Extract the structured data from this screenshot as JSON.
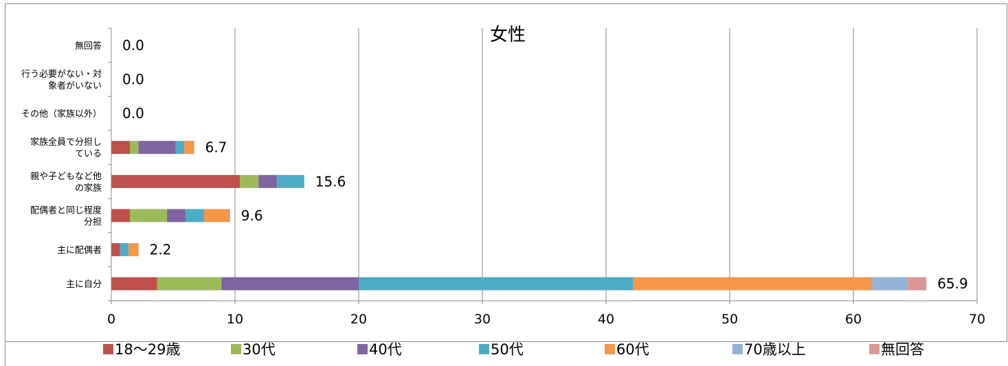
{
  "chart_data": {
    "type": "bar",
    "orientation": "horizontal",
    "stacked": true,
    "title": "女性",
    "xlim": [
      0,
      70
    ],
    "x_ticks": [
      0,
      10,
      20,
      30,
      40,
      50,
      60,
      70
    ],
    "grid": "vertical",
    "legend_position": "bottom",
    "categories": [
      [
        "主に自分"
      ],
      [
        "主に配偶者"
      ],
      [
        "配偶者と同じ程度",
        "分担"
      ],
      [
        "親や子どもなど他",
        "の家族"
      ],
      [
        "家族全員で分担し",
        "ている"
      ],
      [
        "その他（家族以外）"
      ],
      [
        "行う必要がない・対",
        "象者がいない"
      ],
      [
        "無回答"
      ]
    ],
    "totals": [
      "65.9",
      "2.2",
      "9.6",
      "15.6",
      "6.7",
      "0.0",
      "0.0",
      "0.0"
    ],
    "series": [
      {
        "name": "18〜29歳",
        "color": "#C0504D",
        "values": [
          3.7,
          0.7,
          1.5,
          10.4,
          1.5,
          0,
          0,
          0
        ]
      },
      {
        "name": "30代",
        "color": "#9BBB59",
        "values": [
          5.2,
          0.0,
          3.0,
          1.5,
          0.7,
          0,
          0,
          0
        ]
      },
      {
        "name": "40代",
        "color": "#8064A2",
        "values": [
          11.1,
          0.0,
          1.5,
          1.5,
          3.0,
          0,
          0,
          0
        ]
      },
      {
        "name": "50代",
        "color": "#4BACC6",
        "values": [
          22.2,
          0.7,
          1.5,
          2.2,
          0.7,
          0,
          0,
          0
        ]
      },
      {
        "name": "60代",
        "color": "#F79646",
        "values": [
          19.3,
          0.8,
          2.1,
          0,
          0.8,
          0,
          0,
          0
        ]
      },
      {
        "name": "70歳以上",
        "color": "#95B3D7",
        "values": [
          2.9,
          0,
          0,
          0,
          0,
          0,
          0,
          0
        ]
      },
      {
        "name": "無回答",
        "color": "#D99694",
        "values": [
          1.5,
          0,
          0,
          0,
          0,
          0,
          0,
          0
        ]
      }
    ]
  }
}
